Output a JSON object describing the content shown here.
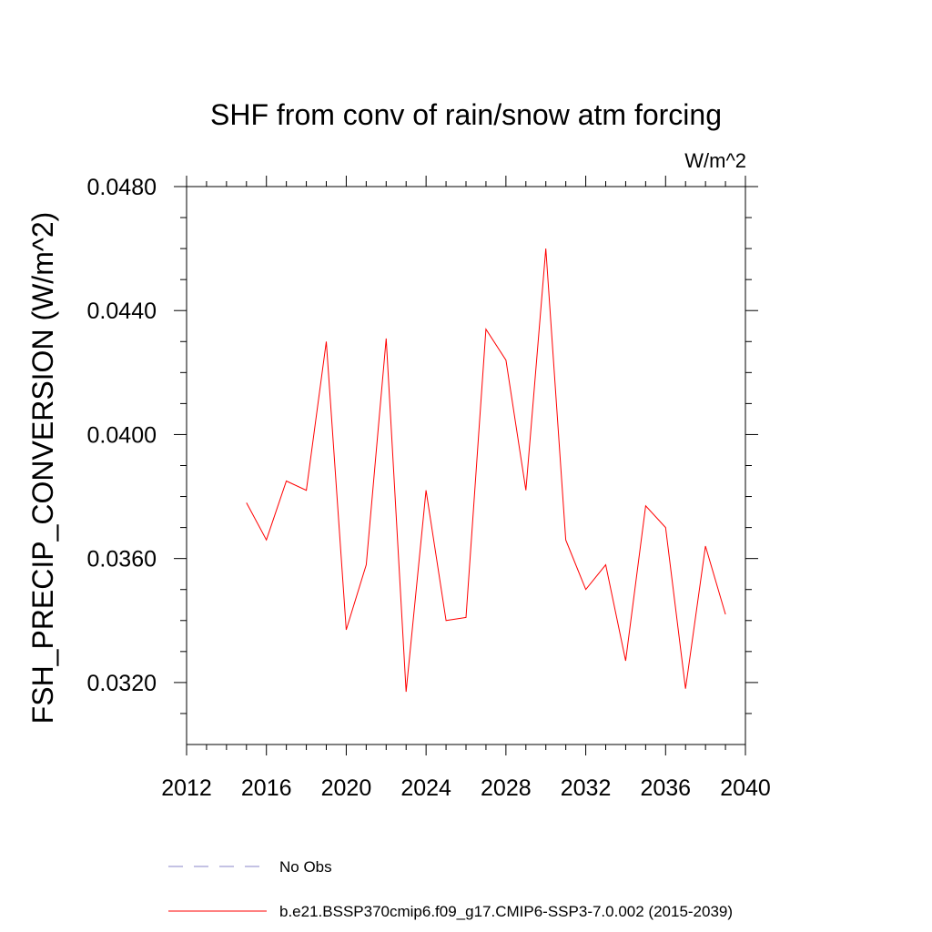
{
  "chart_data": {
    "type": "line",
    "title": "SHF from conv of rain/snow atm forcing",
    "units": "W/m^2",
    "ylabel": "FSH_PRECIP_CONVERSION  (W/m^2)",
    "xlabel": "",
    "xlim": [
      2012,
      2040
    ],
    "ylim": [
      0.03,
      0.048
    ],
    "xticks": [
      2012,
      2016,
      2020,
      2024,
      2028,
      2032,
      2036,
      2040
    ],
    "xtick_labels": [
      "2012",
      "2016",
      "2020",
      "2024",
      "2028",
      "2032",
      "2036",
      "2040"
    ],
    "yticks": [
      0.032,
      0.036,
      0.04,
      0.044,
      0.048
    ],
    "ytick_labels": [
      "0.0320",
      "0.0360",
      "0.0400",
      "0.0440",
      "0.0480"
    ],
    "grid": false,
    "series": [
      {
        "name": "b.e21.BSSP370cmip6.f09_g17.CMIP6-SSP3-7.0.002 (2015-2039)",
        "color": "#ff0000",
        "x": [
          2015,
          2016,
          2017,
          2018,
          2019,
          2020,
          2021,
          2022,
          2023,
          2024,
          2025,
          2026,
          2027,
          2028,
          2029,
          2030,
          2031,
          2032,
          2033,
          2034,
          2035,
          2036,
          2037,
          2038,
          2039
        ],
        "y": [
          0.0378,
          0.0366,
          0.0385,
          0.0382,
          0.043,
          0.0337,
          0.0358,
          0.0431,
          0.0317,
          0.0382,
          0.034,
          0.0341,
          0.0434,
          0.0424,
          0.0382,
          0.046,
          0.0366,
          0.035,
          0.0358,
          0.0327,
          0.0377,
          0.037,
          0.0318,
          0.0364,
          0.0342
        ]
      }
    ],
    "legend": [
      {
        "label": "No Obs",
        "style": "dashed",
        "color": "#8a86c9"
      },
      {
        "label": "b.e21.BSSP370cmip6.f09_g17.CMIP6-SSP3-7.0.002 (2015-2039)",
        "style": "solid",
        "color": "#ff0000"
      }
    ],
    "legend_position": "bottom"
  }
}
